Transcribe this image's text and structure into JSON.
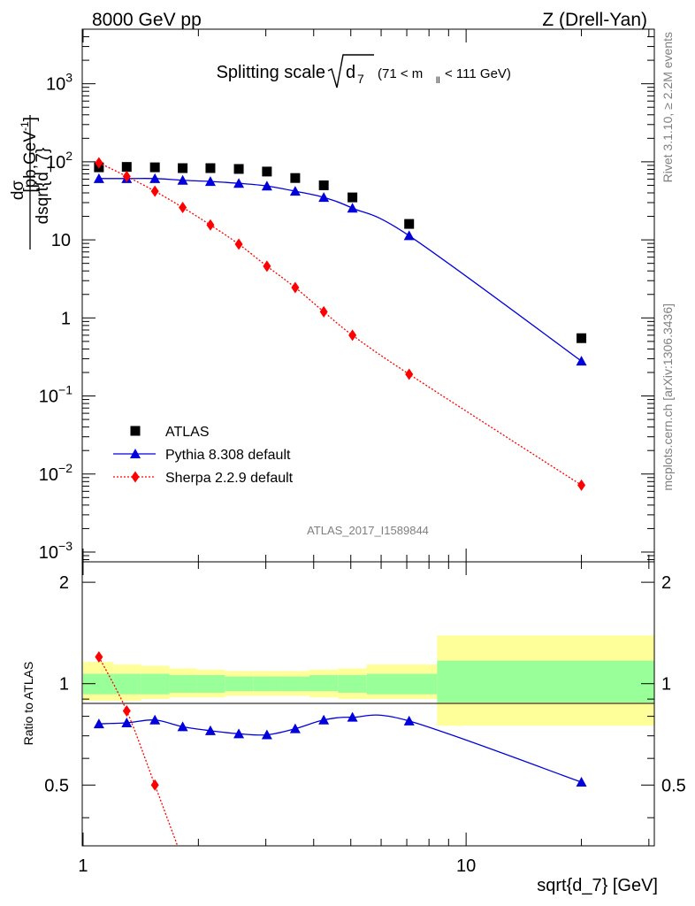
{
  "header": {
    "left": "8000 GeV pp",
    "right": "Z (Drell-Yan)"
  },
  "side_labels": {
    "rivet": "Rivet 3.1.10, ≥ 2.2M events",
    "mcplots": "mcplots.cern.ch [arXiv:1306.3436]"
  },
  "chart_data": {
    "type": "line",
    "title": "Splitting scale √d₇ (71 < mₗₗ < 111 GeV)",
    "title_main": "Splitting scale",
    "title_sqrt": "d",
    "title_sub": "7",
    "title_range": "(71 < m",
    "title_range_sub": "ll",
    "title_range_end": "< 111 GeV)",
    "analysis_label": "ATLAS_2017_I1589844",
    "xlabel": "sqrt{d_7} [GeV]",
    "ylabel_upper_num": "dσ",
    "ylabel_upper_den": "dsqrt{d_7}",
    "ylabel_upper_unit": "[pb,GeV",
    "ylabel_upper_unit_sup": "-1",
    "ylabel_upper_unit_end": "]",
    "ylabel_lower": "Ratio to ATLAS",
    "x_scale": "log",
    "xlim": [
      0.995,
      31.0
    ],
    "ylim_upper": [
      0.00075,
      5000
    ],
    "y_scale_upper": "log",
    "ylim_lower": [
      0.33,
      2.3
    ],
    "y_scale_lower": "log",
    "x_tick_labels": [
      {
        "value": 1,
        "label": "1"
      },
      {
        "value": 10,
        "label": "10"
      }
    ],
    "y_tick_labels_upper": [
      {
        "value": 1000,
        "base": "10",
        "exp": "3"
      },
      {
        "value": 100,
        "base": "10",
        "exp": "2"
      },
      {
        "value": 10,
        "base": "10",
        "exp": ""
      },
      {
        "value": 1,
        "base": "1",
        "exp": ""
      },
      {
        "value": 0.1,
        "base": "10",
        "exp": "−1"
      },
      {
        "value": 0.01,
        "base": "10",
        "exp": "−2"
      },
      {
        "value": 0.001,
        "base": "10",
        "exp": "−3"
      }
    ],
    "y_tick_labels_lower": [
      {
        "value": 2,
        "label": "2"
      },
      {
        "value": 1,
        "label": "1"
      },
      {
        "value": 0.5,
        "label": "0.5"
      }
    ],
    "legend_position": "bottom-left",
    "series": [
      {
        "name": "ATLAS",
        "color": "#000000",
        "marker": "square",
        "x": [
          1.1,
          1.3,
          1.54,
          1.82,
          2.15,
          2.55,
          3.02,
          3.58,
          4.25,
          5.05,
          7.1,
          20.0
        ],
        "y": [
          85,
          86,
          85,
          83,
          83,
          81,
          75,
          62,
          50,
          35,
          16,
          0.55
        ]
      },
      {
        "name": "Pythia 8.308 default",
        "color": "#0000dd",
        "marker": "triangle",
        "x": [
          1.1,
          1.3,
          1.54,
          1.82,
          2.15,
          2.55,
          3.02,
          3.58,
          4.25,
          5.05,
          7.1,
          20.0
        ],
        "y": [
          61,
          61,
          61,
          58,
          56,
          53,
          49,
          42,
          35,
          25.5,
          11.3,
          0.28
        ],
        "ratio": [
          0.76,
          0.765,
          0.78,
          0.745,
          0.725,
          0.71,
          0.705,
          0.735,
          0.78,
          0.795,
          0.775,
          0.51
        ]
      },
      {
        "name": "Sherpa 2.2.9 default",
        "color": "#ff0000",
        "marker": "diamond",
        "x": [
          1.1,
          1.3,
          1.54,
          1.82,
          2.15,
          2.55,
          3.02,
          3.58,
          4.25,
          5.05,
          7.1,
          20.0
        ],
        "y": [
          97,
          65,
          42,
          26,
          15.5,
          8.8,
          4.6,
          2.45,
          1.2,
          0.6,
          0.19,
          0.0072
        ],
        "ratio": [
          1.2,
          0.83,
          0.5,
          0.3,
          null,
          null,
          null,
          null,
          null,
          null,
          null,
          null
        ]
      }
    ],
    "uncertainty_bands": {
      "x_edges": [
        1.0,
        1.2,
        1.42,
        1.68,
        1.98,
        2.35,
        2.78,
        3.3,
        3.9,
        4.63,
        5.5,
        8.4,
        31.0
      ],
      "stat": [
        [
          0.93,
          1.07
        ],
        [
          0.93,
          1.07
        ],
        [
          0.93,
          1.07
        ],
        [
          0.94,
          1.06
        ],
        [
          0.94,
          1.06
        ],
        [
          0.95,
          1.05
        ],
        [
          0.95,
          1.05
        ],
        [
          0.95,
          1.05
        ],
        [
          0.95,
          1.06
        ],
        [
          0.94,
          1.06
        ],
        [
          0.93,
          1.07
        ],
        [
          0.88,
          1.17
        ]
      ],
      "total": [
        [
          0.89,
          1.16
        ],
        [
          0.89,
          1.14
        ],
        [
          0.9,
          1.13
        ],
        [
          0.91,
          1.11
        ],
        [
          0.91,
          1.1
        ],
        [
          0.92,
          1.09
        ],
        [
          0.92,
          1.09
        ],
        [
          0.92,
          1.09
        ],
        [
          0.91,
          1.1
        ],
        [
          0.9,
          1.11
        ],
        [
          0.9,
          1.14
        ],
        [
          0.75,
          1.39
        ]
      ],
      "stat_color": "#99ff99",
      "total_color": "#ffff99"
    }
  }
}
